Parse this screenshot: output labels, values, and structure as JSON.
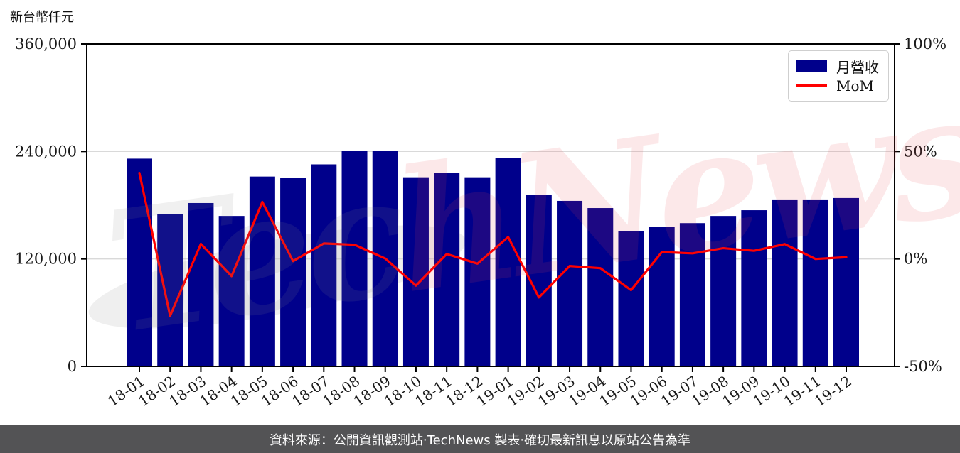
{
  "page": {
    "unit_label": "新台幣仟元"
  },
  "legend": {
    "items": [
      {
        "label": "月營收",
        "type": "bar",
        "color": "#00008B"
      },
      {
        "label": "MoM",
        "type": "line",
        "color": "#FF0000"
      }
    ]
  },
  "watermark": {
    "part1": "Tec",
    "part2": "hNews",
    "color_gray": "#8a8a8a",
    "color_pink": "#e8474f"
  },
  "footer": {
    "text": "資料來源：公開資訊觀測站‧TechNews 製表‧確切最新訊息以原站公告為準",
    "bg_color": "#535355"
  },
  "chart_data": {
    "type": "bar",
    "title": "",
    "categories": [
      "18-01",
      "18-02",
      "18-03",
      "18-04",
      "18-05",
      "18-06",
      "18-07",
      "18-08",
      "18-09",
      "18-10",
      "18-11",
      "18-12",
      "19-01",
      "19-02",
      "19-03",
      "19-04",
      "19-05",
      "19-06",
      "19-07",
      "19-08",
      "19-09",
      "19-10",
      "19-11",
      "19-12"
    ],
    "series": [
      {
        "name": "月營收",
        "type": "bar",
        "axis": "left",
        "color": "#00008B",
        "values": [
          232000,
          170400,
          182400,
          168000,
          212000,
          210400,
          225600,
          240500,
          241000,
          211200,
          216000,
          211200,
          232800,
          191200,
          184800,
          176800,
          151200,
          156000,
          160000,
          168000,
          174400,
          186400,
          186400,
          188000
        ]
      },
      {
        "name": "MoM",
        "type": "line",
        "axis": "right",
        "color": "#FF0000",
        "values": [
          40,
          -26.5,
          7,
          -8,
          26.5,
          -1,
          7.2,
          6.6,
          0.2,
          -12.4,
          2.3,
          -2.2,
          10.2,
          -17.9,
          -3.3,
          -4.3,
          -14.5,
          3.2,
          2.6,
          5,
          3.8,
          6.9,
          0,
          0.8
        ]
      }
    ],
    "left_axis": {
      "label": "新台幣仟元",
      "range": [
        0,
        360000
      ],
      "ticks": [
        {
          "value": 0,
          "label": "0"
        },
        {
          "value": 120000,
          "label": "120,000"
        },
        {
          "value": 240000,
          "label": "240,000"
        },
        {
          "value": 360000,
          "label": "360,000"
        }
      ]
    },
    "right_axis": {
      "label": "%",
      "range": [
        -50,
        100
      ],
      "ticks": [
        {
          "value": -50,
          "label": "-50%"
        },
        {
          "value": 0,
          "label": "0%"
        },
        {
          "value": 50,
          "label": "50%"
        },
        {
          "value": 100,
          "label": "100%"
        }
      ]
    },
    "grid": {
      "horizontal_at_left_values": [
        120000,
        240000
      ],
      "color": "#d9d9d9"
    },
    "legend_position": "top-right"
  }
}
